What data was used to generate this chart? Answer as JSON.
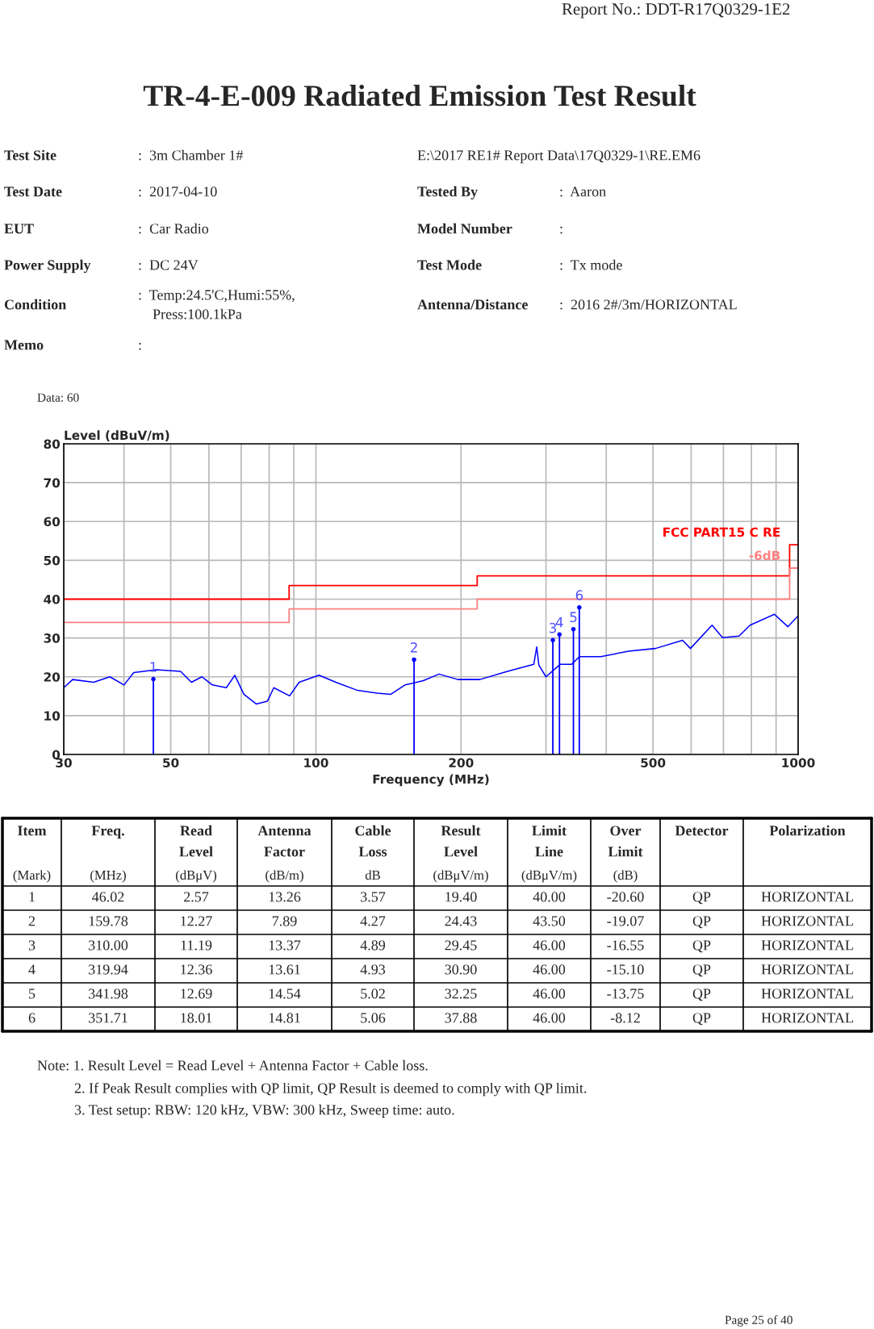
{
  "chart_data": {
    "type": "line",
    "title": "TR-4-E-009 Radiated Emission Test Result",
    "xlabel": "Frequency (MHz)",
    "ylabel": "Level (dBuV/m)",
    "log": "x",
    "xlim": [
      30,
      1000
    ],
    "ylim": [
      0,
      80
    ],
    "xticks": [
      30,
      {
        "value": 40,
        "label": null
      },
      50,
      {
        "value": 60,
        "label": null
      },
      {
        "value": 70,
        "label": null
      },
      {
        "value": 80,
        "label": null
      },
      {
        "value": 90,
        "label": null
      },
      100,
      200,
      {
        "value": 300,
        "label": null
      },
      {
        "value": 400,
        "label": null
      },
      500,
      {
        "value": 600,
        "label": null
      },
      {
        "value": 700,
        "label": null
      },
      {
        "value": 800,
        "label": null
      },
      {
        "value": 900,
        "label": null
      },
      1000
    ],
    "yticks": [
      0,
      10,
      20,
      30,
      40,
      50,
      60,
      70,
      80
    ],
    "grid": true,
    "legend": false,
    "marker": "none",
    "line_style": "solid",
    "series": [
      {
        "color": "#0000ff",
        "x": [
          30,
          31.3,
          34.6,
          37.4,
          40,
          41.9,
          46.7,
          52.4,
          55.2,
          58,
          61,
          65.2,
          67.9,
          70.9,
          75.2,
          79.3,
          81.8,
          88.2,
          92.3,
          101.5,
          110,
          122,
          134,
          143,
          153,
          167,
          180,
          197,
          218.7,
          249.6,
          283,
          287,
          290,
          300,
          321,
          339,
          352,
          390,
          445,
          506,
          576,
          598,
          663,
          697,
          754,
          795,
          893,
          952,
          1000
        ],
        "values": [
          17.2,
          19.3,
          18.6,
          20.0,
          17.9,
          21.1,
          21.8,
          21.4,
          18.6,
          20.0,
          17.9,
          17.2,
          20.4,
          15.5,
          13.0,
          13.7,
          17.2,
          15.1,
          18.6,
          20.4,
          18.6,
          16.5,
          15.8,
          15.5,
          17.9,
          19.0,
          20.7,
          19.3,
          19.3,
          21.4,
          23.2,
          27.7,
          23.0,
          20.0,
          23.2,
          23.2,
          25.2,
          25.2,
          26.6,
          27.3,
          29.4,
          27.3,
          33.3,
          30.1,
          30.5,
          33.3,
          36.1,
          32.9,
          35.7
        ]
      },
      {
        "type": "step",
        "name": "FCC PART15 C RE",
        "color": "#ff0000",
        "x": [
          30,
          88,
          216,
          960,
          1000
        ],
        "values": [
          40,
          43.5,
          46,
          54,
          54
        ]
      },
      {
        "type": "step",
        "name": "-6dB",
        "color": "#ff8080",
        "x": [
          30,
          88,
          216,
          960,
          1000
        ],
        "values": [
          34,
          37.5,
          40,
          48,
          48
        ]
      },
      {
        "type": "lollipop",
        "color": "#0000ff",
        "x": [
          46.02,
          159.78,
          310.0,
          319.94,
          341.98,
          351.71
        ],
        "values": [
          19.4,
          24.43,
          29.45,
          30.9,
          32.25,
          37.88
        ]
      }
    ],
    "annotations": [
      "Report No.: DDT-R17Q0329-1E2",
      "Test Site",
      ":  3m Chamber 1#",
      "Test Date",
      ":  2017-04-10",
      "EUT",
      ":  Car Radio",
      "Power Supply",
      ":  DC 24V",
      "Condition",
      ":  Temp:24.5'C,Humi:55%,\n    Press:100.1kPa",
      "Memo",
      ":",
      "E:\\2017 RE1# Report Data\\17Q0329-1\\RE.EM6",
      "Tested By",
      ":  Aaron",
      "Model Number",
      ":",
      "Test Mode",
      ":  Tx mode",
      "Antenna/Distance",
      ":  2016 2#/3m/HORIZONTAL",
      "Data: 60",
      "Item\n\n(Mark)",
      "Freq.\n\n(MHz)",
      "Read\nLevel\n(dBμV)",
      "Antenna\nFactor\n(dB/m)",
      "Cable\nLoss\ndB",
      "Result\nLevel\n(dBμV/m)",
      "Limit\nLine\n(dBμV/m)",
      "Over\nLimit\n(dB)",
      "Detector",
      "Polarization",
      "1",
      "46.02",
      "2.57",
      "13.26",
      "3.57",
      "19.40",
      "40.00",
      "-20.60",
      "QP",
      "HORIZONTAL",
      "2",
      "159.78",
      "12.27",
      "7.89",
      "4.27",
      "24.43",
      "43.50",
      "-19.07",
      "QP",
      "HORIZONTAL",
      "3",
      "310.00",
      "11.19",
      "13.37",
      "4.89",
      "29.45",
      "46.00",
      "-16.55",
      "QP",
      "HORIZONTAL",
      "4",
      "319.94",
      "12.36",
      "13.61",
      "4.93",
      "30.90",
      "46.00",
      "-15.10",
      "QP",
      "HORIZONTAL",
      "5",
      "341.98",
      "12.69",
      "14.54",
      "5.02",
      "32.25",
      "46.00",
      "-13.75",
      "QP",
      "HORIZONTAL",
      "6",
      "351.71",
      "18.01",
      "14.81",
      "5.06",
      "37.88",
      "46.00",
      "-8.12",
      "QP",
      "HORIZONTAL",
      "Note: 1. Result Level = Read Level + Antenna Factor + Cable loss.",
      "2. If Peak Result complies with QP limit, QP Result is deemed to comply with QP limit.",
      "3. Test setup: RBW: 120 kHz, VBW: 300 kHz, Sweep time: auto.",
      "Page 25 of 40",
      {
        "text": "1",
        "x": 46.02,
        "y": 19.4
      },
      {
        "text": "2",
        "x": 159.78,
        "y": 24.43
      },
      {
        "text": "3",
        "x": 310.0,
        "y": 29.45
      },
      {
        "text": "4",
        "x": 319.94,
        "y": 30.9
      },
      {
        "text": "5",
        "x": 341.98,
        "y": 32.25
      },
      {
        "text": "6",
        "x": 351.71,
        "y": 37.88
      }
    ]
  }
}
